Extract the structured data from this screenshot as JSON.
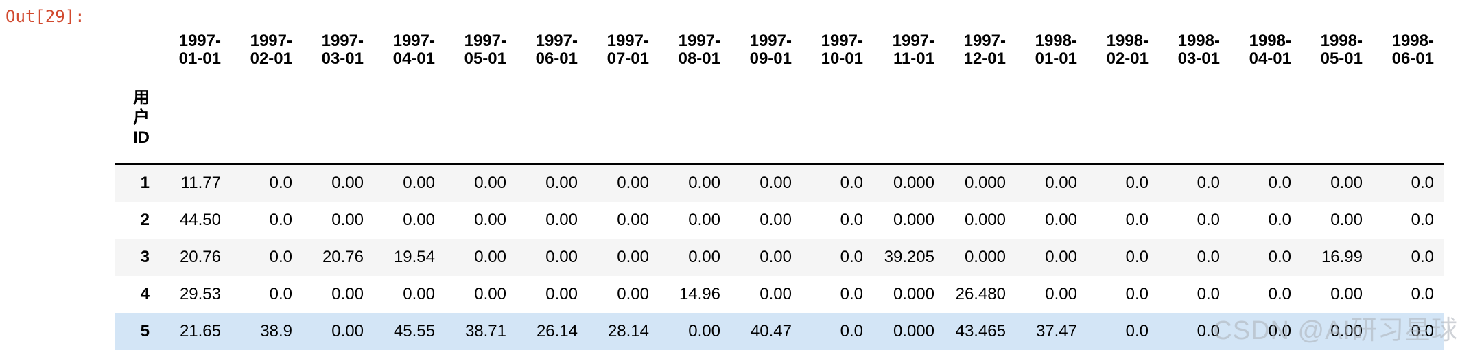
{
  "prompt": "Out[29]:",
  "table": {
    "index_name": "用户ID",
    "columns": [
      "1997-01-01",
      "1997-02-01",
      "1997-03-01",
      "1997-04-01",
      "1997-05-01",
      "1997-06-01",
      "1997-07-01",
      "1997-08-01",
      "1997-09-01",
      "1997-10-01",
      "1997-11-01",
      "1997-12-01",
      "1998-01-01",
      "1998-02-01",
      "1998-03-01",
      "1998-04-01",
      "1998-05-01",
      "1998-06-01"
    ],
    "rows": [
      {
        "index": "1",
        "highlighted": false,
        "values": [
          "11.77",
          "0.0",
          "0.00",
          "0.00",
          "0.00",
          "0.00",
          "0.00",
          "0.00",
          "0.00",
          "0.0",
          "0.000",
          "0.000",
          "0.00",
          "0.0",
          "0.0",
          "0.0",
          "0.00",
          "0.0"
        ]
      },
      {
        "index": "2",
        "highlighted": false,
        "values": [
          "44.50",
          "0.0",
          "0.00",
          "0.00",
          "0.00",
          "0.00",
          "0.00",
          "0.00",
          "0.00",
          "0.0",
          "0.000",
          "0.000",
          "0.00",
          "0.0",
          "0.0",
          "0.0",
          "0.00",
          "0.0"
        ]
      },
      {
        "index": "3",
        "highlighted": false,
        "values": [
          "20.76",
          "0.0",
          "20.76",
          "19.54",
          "0.00",
          "0.00",
          "0.00",
          "0.00",
          "0.00",
          "0.0",
          "39.205",
          "0.000",
          "0.00",
          "0.0",
          "0.0",
          "0.0",
          "16.99",
          "0.0"
        ]
      },
      {
        "index": "4",
        "highlighted": false,
        "values": [
          "29.53",
          "0.0",
          "0.00",
          "0.00",
          "0.00",
          "0.00",
          "0.00",
          "14.96",
          "0.00",
          "0.0",
          "0.000",
          "26.480",
          "0.00",
          "0.0",
          "0.0",
          "0.0",
          "0.00",
          "0.0"
        ]
      },
      {
        "index": "5",
        "highlighted": true,
        "values": [
          "21.65",
          "38.9",
          "0.00",
          "45.55",
          "38.71",
          "26.14",
          "28.14",
          "0.00",
          "40.47",
          "0.0",
          "0.000",
          "43.465",
          "37.47",
          "0.0",
          "0.0",
          "0.0",
          "0.00",
          "0.0"
        ]
      }
    ]
  },
  "watermark": "CSDN @AI研习星球",
  "colors": {
    "prompt": "#d1492e",
    "row_stripe": "#f5f5f5",
    "row_highlight": "#d3e5f6",
    "header_border": "#000000"
  }
}
